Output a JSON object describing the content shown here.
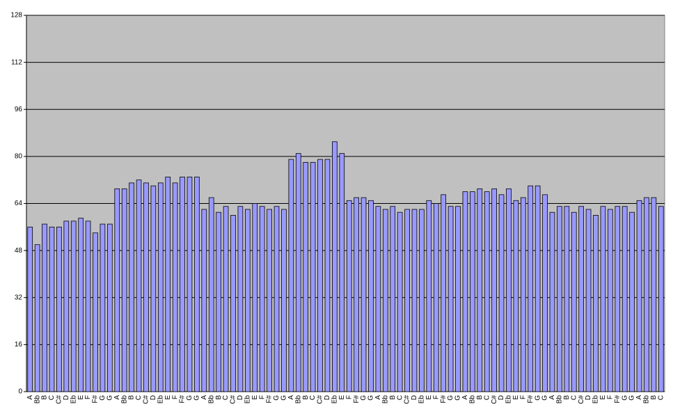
{
  "chart_data": {
    "type": "bar",
    "categories": [
      "A",
      "Bb",
      "B",
      "C",
      "C#",
      "D",
      "Eb",
      "E",
      "F",
      "F#",
      "G",
      "G",
      "A",
      "Bb",
      "B",
      "C",
      "C#",
      "D",
      "Eb",
      "E",
      "F",
      "F#",
      "G",
      "G",
      "A",
      "Bb",
      "B",
      "C",
      "C#",
      "D",
      "Eb",
      "E",
      "F",
      "F#",
      "G",
      "G",
      "A",
      "Bb",
      "B",
      "C",
      "C#",
      "D",
      "Eb",
      "E",
      "F",
      "F#",
      "G",
      "G",
      "A",
      "Bb",
      "B",
      "C",
      "C#",
      "D",
      "Eb",
      "E",
      "F",
      "F#",
      "G",
      "G",
      "A",
      "Bb",
      "B",
      "C",
      "C#",
      "D",
      "Eb",
      "E",
      "F",
      "F#",
      "G",
      "G",
      "A",
      "Bb",
      "B",
      "C",
      "C#",
      "D",
      "Eb",
      "E",
      "F",
      "F#",
      "G",
      "G",
      "A",
      "Bb",
      "B",
      "C"
    ],
    "values": [
      56,
      50,
      57,
      56,
      56,
      58,
      58,
      59,
      58,
      54,
      57,
      57,
      69,
      69,
      71,
      72,
      71,
      70,
      71,
      73,
      71,
      73,
      73,
      73,
      62,
      66,
      61,
      63,
      60,
      63,
      62,
      64,
      63,
      62,
      63,
      62,
      79,
      81,
      78,
      78,
      79,
      79,
      85,
      81,
      65,
      66,
      66,
      65,
      63,
      62,
      63,
      61,
      62,
      62,
      62,
      65,
      64,
      67,
      63,
      63,
      68,
      68,
      69,
      68,
      69,
      67,
      69,
      65,
      66,
      70,
      70,
      67,
      61,
      63,
      63,
      61,
      63,
      62,
      60,
      63,
      62,
      63,
      63,
      61,
      65,
      66,
      66,
      63
    ],
    "color": "#9999ff",
    "ylim": [
      0,
      128
    ],
    "yticks": [
      0,
      16,
      32,
      48,
      64,
      80,
      96,
      112,
      128
    ],
    "grid": true
  }
}
